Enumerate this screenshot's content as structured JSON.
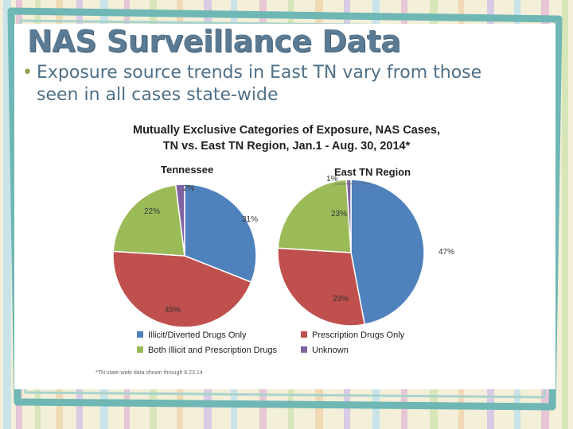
{
  "slide": {
    "title": "NAS Surveillance Data",
    "bullet": "Exposure source trends in East TN vary from those seen in all cases state-wide"
  },
  "colors": {
    "illicit": "#4f81bd",
    "prescription": "#c0504d",
    "both": "#9bbb59",
    "unknown": "#8064a2"
  },
  "chart_data": {
    "type": "pie",
    "title": "Mutually Exclusive Categories of Exposure, NAS Cases,",
    "subtitle": "TN vs. East TN Region, Jan.1 - Aug. 30, 2014*",
    "categories": [
      "Illicit/Diverted Drugs Only",
      "Prescription Drugs Only",
      "Both Illicit and Prescription Drugs",
      "Unknown"
    ],
    "pies": [
      {
        "name": "Tennessee",
        "values": [
          31,
          45,
          22,
          2
        ],
        "labels": [
          "31%",
          "45%",
          "22%",
          "2%"
        ]
      },
      {
        "name": "East TN Region",
        "values": [
          47,
          29,
          23,
          1
        ],
        "labels": [
          "47%",
          "29%",
          "23%",
          "1%"
        ]
      }
    ],
    "legend_position": "bottom",
    "footnote": "*TN state-wide data shown through 8.23.14"
  }
}
